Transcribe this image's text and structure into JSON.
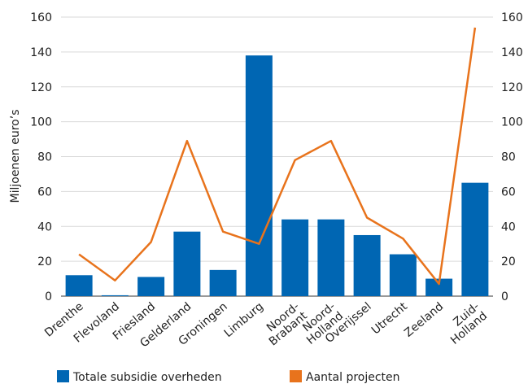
{
  "chart_data": {
    "type": "bar",
    "ylabel": "Miljoenen euro’s",
    "categories": [
      [
        "Drenthe"
      ],
      [
        "Flevoland"
      ],
      [
        "Friesland"
      ],
      [
        "Gelderland"
      ],
      [
        "Groningen"
      ],
      [
        "Limburg"
      ],
      [
        "Noord-",
        "Brabant"
      ],
      [
        "Noord-",
        "Holland"
      ],
      [
        "Overijssel"
      ],
      [
        "Utrecht"
      ],
      [
        "Zeeland"
      ],
      [
        "Zuid-",
        "Holland"
      ]
    ],
    "y_ticks": [
      "0",
      "20",
      "40",
      "60",
      "80",
      "100",
      "120",
      "140",
      "160"
    ],
    "y2_ticks": [
      "0",
      "20",
      "40",
      "60",
      "80",
      "100",
      "120",
      "140",
      "160"
    ],
    "ylim": [
      0,
      160
    ],
    "y2lim": [
      0,
      160
    ],
    "series": [
      {
        "name": "Totale subsidie overheden",
        "type": "bar",
        "axis": "left",
        "color": "#0066b3",
        "values": [
          12,
          0.5,
          11,
          37,
          15,
          138,
          44,
          44,
          35,
          24,
          10,
          65
        ]
      },
      {
        "name": "Aantal projecten",
        "type": "line",
        "axis": "right",
        "color": "#e8731c",
        "values": [
          24,
          9,
          31,
          89,
          37,
          30,
          78,
          89,
          45,
          33,
          7,
          154
        ]
      }
    ],
    "legend": "bottom",
    "grid": true
  }
}
